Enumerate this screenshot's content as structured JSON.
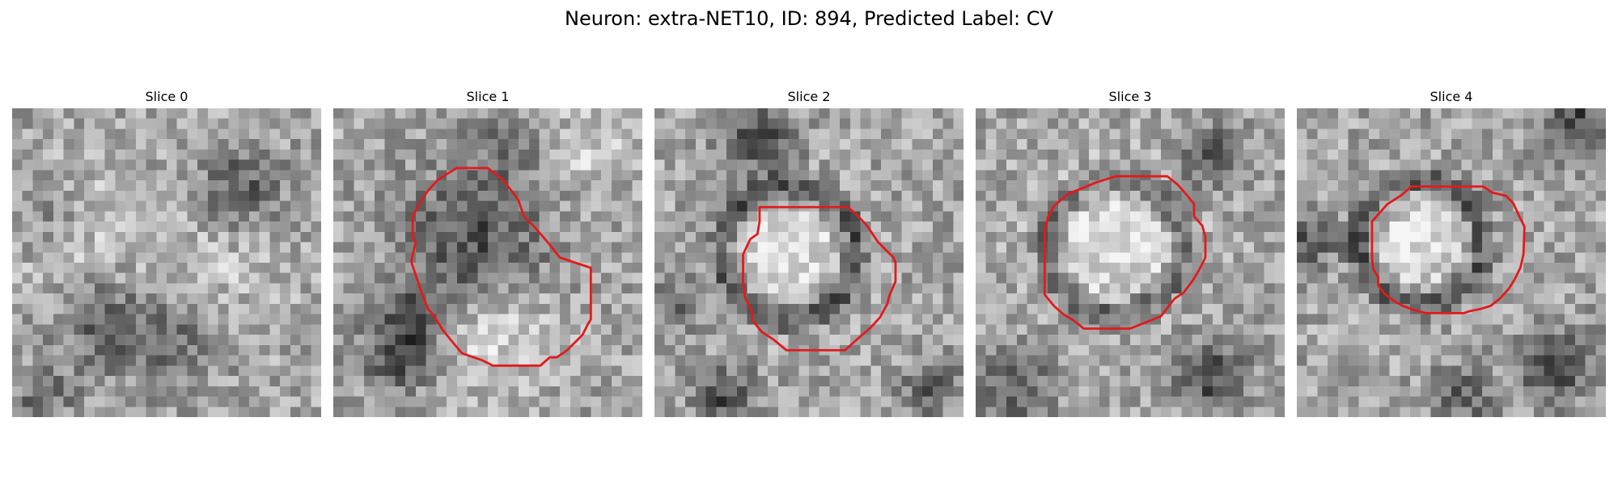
{
  "figure": {
    "title": "Neuron: extra-NET10, ID: 894, Predicted Label: CV",
    "contour_color": "#e31a1c",
    "colormap": "grayscale"
  },
  "slices": [
    {
      "title": "Slice 0",
      "has_contour": false
    },
    {
      "title": "Slice 1",
      "has_contour": true
    },
    {
      "title": "Slice 2",
      "has_contour": true
    },
    {
      "title": "Slice 3",
      "has_contour": true
    },
    {
      "title": "Slice 4",
      "has_contour": true
    }
  ]
}
